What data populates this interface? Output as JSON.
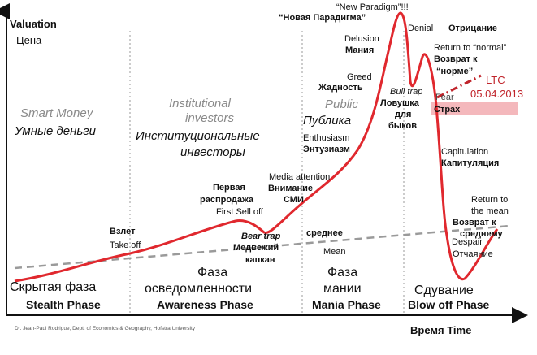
{
  "y_axis": {
    "label_en": "Valuation",
    "label_ru": "Цена"
  },
  "x_axis": {
    "label": "Время Time"
  },
  "credit": "Dr. Jean-Paul Rodrigue, Dept. of Economics & Geography, Hofstra University",
  "investors": {
    "smart_en": "Smart Money",
    "smart_ru": "Умные деньги",
    "inst_en_1": "Institutional",
    "inst_en_2": "investors",
    "inst_ru_1": "Институциональные",
    "inst_ru_2": "инвесторы",
    "public_en": "Public",
    "public_ru": "Публика"
  },
  "phases": [
    {
      "ru": "Скрытая фаза",
      "en": "Stealth Phase"
    },
    {
      "ru_1": "Фаза",
      "ru_2": "осведомленности",
      "en": "Awareness Phase"
    },
    {
      "ru_1": "Фаза",
      "ru_2": "мании",
      "en": "Mania Phase"
    },
    {
      "ru": "Сдувание",
      "en": "Blow off Phase"
    }
  ],
  "annotations": {
    "takeoff_ru": "Взлет",
    "takeoff_en": "Take off",
    "first_sell_ru_1": "Первая",
    "first_sell_ru_2": "распродажа",
    "first_sell_en": "First Sell off",
    "bear_trap_en": "Bear trap",
    "bear_trap_ru_1": "Медвежий",
    "bear_trap_ru_2": "капкан",
    "media_en": "Media attention",
    "media_ru_1": "Внимание",
    "media_ru_2": "СМИ",
    "mean_ru": "среднее",
    "mean_en": "Mean",
    "enthusiasm_en": "Enthusiasm",
    "enthusiasm_ru": "Энтузиазм",
    "greed_en": "Greed",
    "greed_ru": "Жадность",
    "delusion_en": "Delusion",
    "delusion_ru": "Мания",
    "new_paradigm_en": "“New Paradigm”!!!",
    "new_paradigm_ru": "“Новая Парадигма”",
    "bull_trap_en": "Bull trap",
    "bull_trap_ru_1": "Ловушка",
    "bull_trap_ru_2": "для",
    "bull_trap_ru_3": "быков",
    "denial_en": "Denial",
    "denial_ru": "Отрицание",
    "return_normal_en": "Return to “normal”",
    "return_normal_ru_1": "Возврат к",
    "return_normal_ru_2": "“норме”",
    "fear_en": "Fear",
    "fear_ru": "Страх",
    "capitulation_en": "Capitulation",
    "capitulation_ru": "Капитуляция",
    "despair_en": "Despair",
    "despair_ru": "Отчаяние",
    "return_mean_en_1": "Return to",
    "return_mean_en_2": "the mean",
    "return_mean_ru_1": "Возврат к",
    "return_mean_ru_2": "среднему"
  },
  "ltc_marker": {
    "line1": "LTC",
    "line2": "05.04.2013"
  },
  "colors": {
    "curve": "#e0282e",
    "mean_line": "#9a9a9a",
    "ltc": "#c0242b",
    "highlight": "#f4b8bc",
    "grid": "#9a9a9a"
  }
}
